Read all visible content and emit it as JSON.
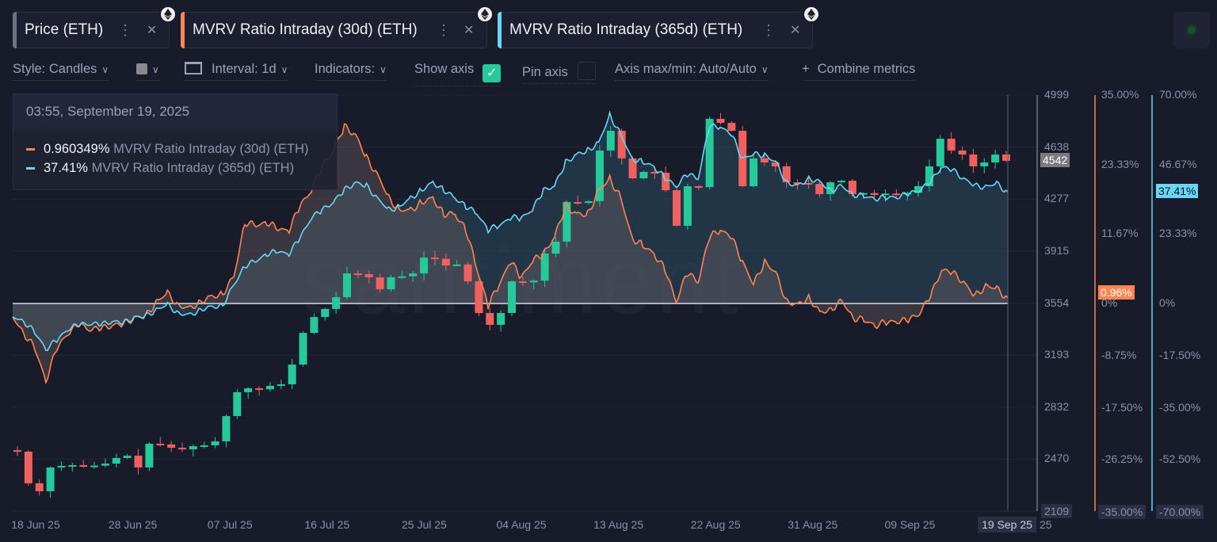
{
  "tabs": [
    {
      "label": "Price (ETH)",
      "color": "#6f7283"
    },
    {
      "label": "MVRV Ratio Intraday (30d) (ETH)",
      "color": "#ff8450"
    },
    {
      "label": "MVRV Ratio Intraday (365d) (ETH)",
      "color": "#68d6f5"
    }
  ],
  "toolbar": {
    "style": "Style: Candles",
    "interval": "Interval: 1d",
    "indicators": "Indicators:",
    "show_axis": "Show axis",
    "show_axis_checked": true,
    "pin_axis": "Pin axis",
    "pin_axis_checked": false,
    "axis_maxmin": "Axis max/min: Auto/Auto",
    "combine": "Combine metrics"
  },
  "tooltip": {
    "date": "03:55, September 19, 2025",
    "rows": [
      {
        "value": "0.960349%",
        "name": "MVRV Ratio Intraday (30d) (ETH)",
        "color": "#ff8450"
      },
      {
        "value": "37.41%",
        "name": "MVRV Ratio Intraday (365d) (ETH)",
        "color": "#68d6f5"
      }
    ]
  },
  "watermark": "santiment",
  "colors": {
    "up": "#26c99a",
    "down": "#f0605e",
    "mvrv30": "#ff8450",
    "mvrv365": "#68d6f5"
  },
  "chart_data": {
    "type": "candlestick+line",
    "x_ticks": [
      "18 Jun 25",
      "28 Jun 25",
      "07 Jul 25",
      "16 Jul 25",
      "25 Jul 25",
      "04 Aug 25",
      "13 Aug 25",
      "22 Aug 25",
      "31 Aug 25",
      "09 Sep 25"
    ],
    "x_last_label": "19 Sep 25",
    "x_trailing": "25",
    "price_axis": {
      "ticks": [
        "4999",
        "4638",
        "4277",
        "3915",
        "3554",
        "3193",
        "2832",
        "2470",
        "2109"
      ],
      "range": [
        2109,
        4999
      ],
      "current": "4542"
    },
    "mvrv30_axis": {
      "ticks": [
        "35.00%",
        "23.33%",
        "11.67%",
        "0%",
        "-8.75%",
        "-17.50%",
        "-26.25%",
        "-35.00%"
      ],
      "tick_values": [
        35,
        23.33,
        11.67,
        0,
        -8.75,
        -17.5,
        -26.25,
        -35
      ],
      "range": [
        -35,
        35
      ],
      "current": "0.96%"
    },
    "mvrv365_axis": {
      "ticks": [
        "70.00%",
        "46.67%",
        "23.33%",
        "0%",
        "-17.50%",
        "-35.00%",
        "-52.50%",
        "-70.00%"
      ],
      "tick_values": [
        70,
        46.67,
        23.33,
        0,
        -17.5,
        -35,
        -52.5,
        -70
      ],
      "range": [
        -70,
        70
      ],
      "current": "37.41%"
    },
    "price_close": [
      2522,
      2302,
      2247,
      2412,
      2423,
      2428,
      2418,
      2425,
      2439,
      2478,
      2494,
      2412,
      2577,
      2572,
      2549,
      2538,
      2560,
      2566,
      2593,
      2769,
      2935,
      2962,
      2955,
      2979,
      2990,
      3127,
      3347,
      3457,
      3513,
      3595,
      3760,
      3755,
      3733,
      3650,
      3733,
      3740,
      3760,
      3870,
      3862,
      3815,
      3822,
      3705,
      3485,
      3403,
      3485,
      3705,
      3698,
      3710,
      3898,
      3981,
      4256,
      4250,
      4262,
      4614,
      4751,
      4559,
      4421,
      4465,
      4460,
      4338,
      4091,
      4366,
      4360,
      4834,
      4806,
      4751,
      4366,
      4559,
      4531,
      4504,
      4393,
      4388,
      4382,
      4311,
      4393,
      4404,
      4311,
      4318,
      4305,
      4315,
      4309,
      4320,
      4366,
      4504,
      4696,
      4614,
      4586,
      4504,
      4531,
      4586,
      4542
    ],
    "mvrv30": [
      -2.3,
      -4.9,
      -7.6,
      -12.9,
      -7.6,
      -4.9,
      -3.6,
      -4.3,
      -4.3,
      -3.6,
      -3.6,
      -2.3,
      -2.3,
      0.4,
      1.7,
      -0.3,
      -0.9,
      0.4,
      1.1,
      1.7,
      4.4,
      13.7,
      13.0,
      13.7,
      12.4,
      12.4,
      16.4,
      19.0,
      23.0,
      25.7,
      29.7,
      28.4,
      24.4,
      21.7,
      17.7,
      15.7,
      15.7,
      17.0,
      17.7,
      15.0,
      15.0,
      12.4,
      5.7,
      -0.3,
      3.1,
      7.1,
      4.4,
      7.1,
      8.4,
      11.1,
      16.4,
      15.0,
      15.0,
      19.0,
      21.0,
      17.7,
      11.1,
      9.7,
      8.4,
      5.7,
      0.4,
      5.1,
      3.7,
      11.1,
      12.4,
      11.1,
      7.1,
      3.1,
      7.1,
      5.1,
      0.4,
      -0.3,
      1.1,
      -1.6,
      -0.9,
      0.4,
      -2.3,
      -2.9,
      -3.6,
      -3.3,
      -2.9,
      -2.9,
      -1.6,
      1.1,
      5.7,
      5.1,
      3.7,
      1.1,
      3.1,
      2.4,
      0.96
    ],
    "mvrv365": [
      -4.5,
      -5.9,
      -9.8,
      -15.2,
      -12.5,
      -8.5,
      -7.2,
      -6.7,
      -7.2,
      -5.9,
      -6.7,
      -4.5,
      -4.5,
      -1.9,
      -0.5,
      -3.2,
      -4.0,
      -1.9,
      -1.3,
      -0.5,
      6.1,
      12.8,
      14.1,
      16.8,
      17.3,
      16.8,
      22.1,
      28.8,
      31.4,
      34.1,
      38.1,
      40.7,
      39.4,
      35.4,
      31.4,
      32.7,
      35.4,
      38.1,
      40.7,
      38.1,
      35.4,
      32.7,
      30.1,
      24.8,
      26.1,
      28.8,
      28.8,
      31.4,
      38.1,
      39.4,
      47.4,
      50.0,
      51.4,
      54.0,
      63.3,
      56.7,
      48.7,
      47.4,
      46.1,
      42.1,
      39.4,
      43.4,
      42.1,
      59.4,
      59.4,
      56.7,
      48.7,
      50.0,
      50.0,
      47.4,
      40.7,
      39.4,
      42.1,
      40.7,
      38.1,
      39.4,
      36.7,
      35.9,
      35.4,
      35.4,
      35.9,
      36.7,
      38.1,
      40.7,
      46.0,
      44.7,
      42.1,
      39.4,
      39.4,
      40.2,
      37.41
    ]
  }
}
